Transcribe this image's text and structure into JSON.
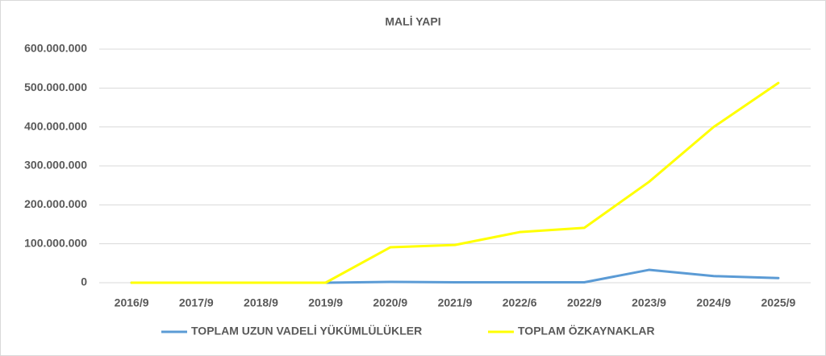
{
  "chart_data": {
    "type": "line",
    "title": "MALİ YAPI",
    "categories": [
      "2016/9",
      "2017/9",
      "2018/9",
      "2019/9",
      "2020/9",
      "2021/9",
      "2022/6",
      "2022/9",
      "2023/9",
      "2024/9",
      "2025/9"
    ],
    "series": [
      {
        "name": "TOPLAM UZUN VADELİ YÜKÜMLÜLÜKLER",
        "color": "#5b9bd5",
        "values": [
          0,
          0,
          0,
          0,
          2000000,
          1000000,
          1000000,
          1000000,
          33000000,
          17000000,
          12000000
        ]
      },
      {
        "name": "TOPLAM ÖZKAYNAKLAR",
        "color": "#ffff00",
        "values": [
          0,
          0,
          0,
          0,
          91000000,
          97000000,
          130000000,
          141000000,
          259000000,
          400000000,
          513000000
        ]
      }
    ],
    "ylim": [
      0,
      600000000
    ],
    "yticks": [
      0,
      {
        "value": 100000000,
        "label": "100.000.000"
      },
      {
        "value": 200000000,
        "label": "200.000.000"
      },
      {
        "value": 300000000,
        "label": "300.000.000"
      },
      {
        "value": 400000000,
        "label": "400.000.000"
      },
      {
        "value": 500000000,
        "label": "500.000.000"
      },
      {
        "value": 600000000,
        "label": "600.000.000"
      }
    ],
    "grid": true,
    "legend": "bottom"
  }
}
